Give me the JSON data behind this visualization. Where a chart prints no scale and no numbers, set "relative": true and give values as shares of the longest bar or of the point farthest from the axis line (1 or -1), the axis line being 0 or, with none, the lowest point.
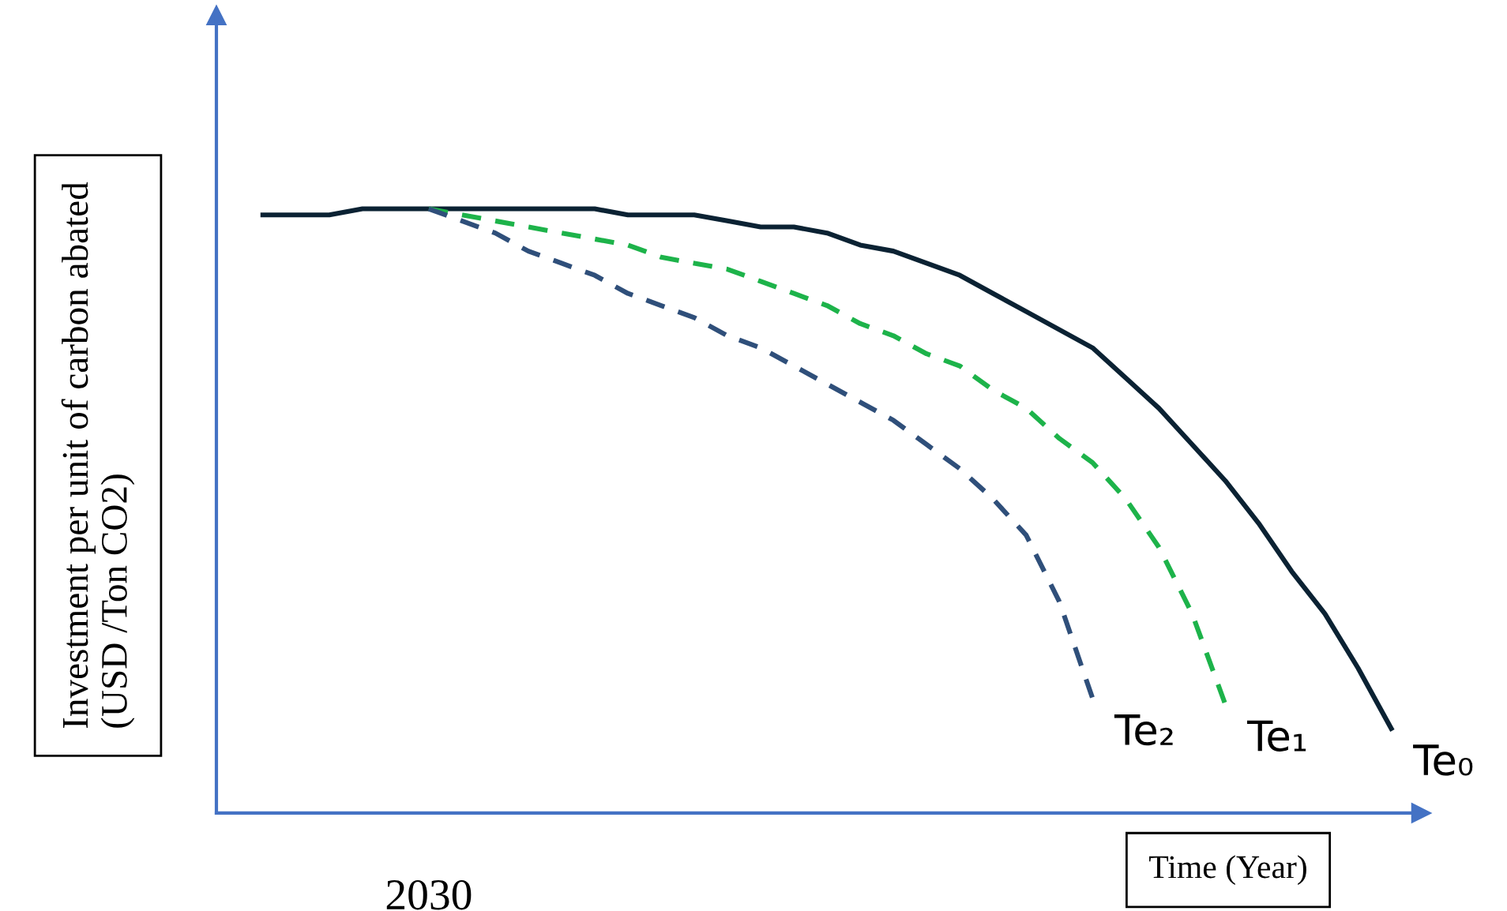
{
  "chart_data": {
    "type": "line",
    "relative": true,
    "xlabel": "Time (Year)",
    "ylabel": "Investment per unit of carbon abated\n(USD /Ton CO2)",
    "legend": false,
    "marker": "none",
    "categories": [
      null,
      null,
      null,
      null,
      null,
      null,
      null,
      null,
      null,
      null,
      null,
      null,
      null,
      null,
      null,
      null,
      null,
      null,
      null,
      null,
      null,
      null,
      null,
      null,
      null,
      null,
      null,
      null,
      null,
      null,
      null,
      null,
      null,
      null,
      null
    ],
    "series": [
      {
        "color": "#0b2233",
        "line_style": "solid",
        "values": [
          0.99,
          0.99,
          0.99,
          1.0,
          1.0,
          1.0,
          1.0,
          1.0,
          1.0,
          1.0,
          1.0,
          0.99,
          0.99,
          0.99,
          0.98,
          0.97,
          0.97,
          0.96,
          0.94,
          0.93,
          0.91,
          0.89,
          0.86,
          0.83,
          0.8,
          0.77,
          0.72,
          0.67,
          0.61,
          0.55,
          0.48,
          0.4,
          0.33,
          0.24,
          0.14
        ]
      },
      {
        "color": "#1db34a",
        "line_style": "dashed",
        "values": [
          null,
          null,
          null,
          null,
          null,
          1.0,
          0.99,
          0.98,
          0.97,
          0.96,
          0.95,
          0.94,
          0.92,
          0.91,
          0.9,
          0.88,
          0.86,
          0.84,
          0.81,
          0.79,
          0.76,
          0.74,
          0.7,
          0.67,
          0.62,
          0.58,
          0.52,
          0.44,
          0.33,
          0.18,
          null,
          null,
          null,
          null,
          null
        ]
      },
      {
        "color": "#2f4f7a",
        "line_style": "dashed",
        "values": [
          null,
          null,
          null,
          null,
          null,
          1.0,
          0.98,
          0.96,
          0.93,
          0.91,
          0.89,
          0.86,
          0.84,
          0.82,
          0.79,
          0.77,
          0.74,
          0.71,
          0.68,
          0.65,
          0.61,
          0.57,
          0.52,
          0.46,
          0.35,
          0.19,
          null,
          null,
          null,
          null,
          null,
          null,
          null,
          null,
          null
        ]
      }
    ],
    "annotations": [
      "2030",
      "Te₀",
      "Te₁",
      "Te₂"
    ]
  }
}
